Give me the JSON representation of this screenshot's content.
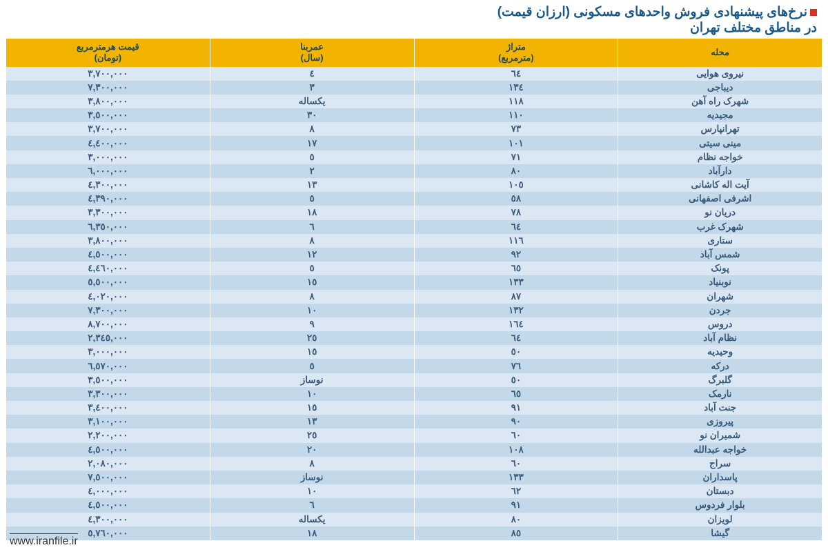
{
  "title": {
    "line1": "نرخ‌های پیشنهادی فروش واحدهای مسکونی (ارزان قیمت)",
    "line2": "در مناطق مختلف تهران"
  },
  "colors": {
    "header_bg": "#f2b400",
    "header_text": "#1a4a6a",
    "title_text": "#1a5a8a",
    "bullet": "#d93025",
    "row_odd": "#dbe8f3",
    "row_even": "#c3d9ea",
    "cell_text": "#3a5a7a"
  },
  "columns": [
    {
      "key": "neighborhood",
      "label_l1": "محله",
      "label_l2": ""
    },
    {
      "key": "area",
      "label_l1": "متراژ",
      "label_l2": "(مترمربع)"
    },
    {
      "key": "age",
      "label_l1": "عمربنا",
      "label_l2": "(سال)"
    },
    {
      "key": "price",
      "label_l1": "قیمت هرمترمربع",
      "label_l2": "(تومان)"
    }
  ],
  "rows": [
    {
      "neighborhood": "نیروی هوایی",
      "area": "٦٤",
      "age": "٤",
      "price": "٣,٧٠٠,٠٠٠"
    },
    {
      "neighborhood": "دیباجی",
      "area": "١٣٤",
      "age": "٣",
      "price": "٧,٣٠٠,٠٠٠"
    },
    {
      "neighborhood": "شهرک راه آهن",
      "area": "١١٨",
      "age": "یکساله",
      "price": "٣,٨٠٠,٠٠٠"
    },
    {
      "neighborhood": "مجیدیه",
      "area": "١١٠",
      "age": "٣٠",
      "price": "٣,٥٠٠,٠٠٠"
    },
    {
      "neighborhood": "تهرانپارس",
      "area": "٧٣",
      "age": "٨",
      "price": "٣,٧٠٠,٠٠٠"
    },
    {
      "neighborhood": "مینی سیتی",
      "area": "١٠١",
      "age": "١٧",
      "price": "٤,٤٠٠,٠٠٠"
    },
    {
      "neighborhood": "خواجه نظام",
      "area": "٧١",
      "age": "٥",
      "price": "٣,٠٠٠,٠٠٠"
    },
    {
      "neighborhood": "دارآباد",
      "area": "٨٠",
      "age": "٢",
      "price": "٦,٠٠٠,٠٠٠"
    },
    {
      "neighborhood": "آیت اله کاشانی",
      "area": "١٠٥",
      "age": "١٣",
      "price": "٤,٣٠٠,٠٠٠"
    },
    {
      "neighborhood": "اشرفی اصفهانی",
      "area": "٥٨",
      "age": "٥",
      "price": "٤,٣٩٠,٠٠٠"
    },
    {
      "neighborhood": "دریان نو",
      "area": "٧٨",
      "age": "١٨",
      "price": "٣,٣٠٠,٠٠٠"
    },
    {
      "neighborhood": "شهرک غرب",
      "area": "٦٤",
      "age": "٦",
      "price": "٦,٣٥٠,٠٠٠"
    },
    {
      "neighborhood": "ستاری",
      "area": "١١٦",
      "age": "٨",
      "price": "٣,٨٠٠,٠٠٠"
    },
    {
      "neighborhood": "شمس آباد",
      "area": "٩٢",
      "age": "١٢",
      "price": "٤,٥٠٠,٠٠٠"
    },
    {
      "neighborhood": "پونک",
      "area": "٦٥",
      "age": "٥",
      "price": "٤,٤٦٠,٠٠٠"
    },
    {
      "neighborhood": "نوبنیاد",
      "area": "١٣٣",
      "age": "١٥",
      "price": "٥,٥٠٠,٠٠٠"
    },
    {
      "neighborhood": "شهران",
      "area": "٨٧",
      "age": "٨",
      "price": "٤,٠٢٠,٠٠٠"
    },
    {
      "neighborhood": "جردن",
      "area": "١٣٢",
      "age": "١٠",
      "price": "٧,٣٠٠,٠٠٠"
    },
    {
      "neighborhood": "دروس",
      "area": "١٦٤",
      "age": "٩",
      "price": "٨,٧٠٠,٠٠٠"
    },
    {
      "neighborhood": "نظام آباد",
      "area": "٦٤",
      "age": "٢٥",
      "price": "٢,٣٤٥,٠٠٠"
    },
    {
      "neighborhood": "وحیدیه",
      "area": "٥٠",
      "age": "١٥",
      "price": "٣,٠٠٠,٠٠٠"
    },
    {
      "neighborhood": "درکه",
      "area": "٧٦",
      "age": "٥",
      "price": "٦,٥٧٠,٠٠٠"
    },
    {
      "neighborhood": "گلبرگ",
      "area": "٥٠",
      "age": "نوساز",
      "price": "٣,٥٠٠,٠٠٠"
    },
    {
      "neighborhood": "نارمک",
      "area": "٦٥",
      "age": "١٠",
      "price": "٣,٣٠٠,٠٠٠"
    },
    {
      "neighborhood": "جنت آباد",
      "area": "٩١",
      "age": "١٥",
      "price": "٣,٤٠٠,٠٠٠"
    },
    {
      "neighborhood": "پیروزی",
      "area": "٩٠",
      "age": "١٣",
      "price": "٣,١٠٠,٠٠٠"
    },
    {
      "neighborhood": "شمیران نو",
      "area": "٦٠",
      "age": "٢٥",
      "price": "٢,٢٠٠,٠٠٠"
    },
    {
      "neighborhood": "خواجه عبدالله",
      "area": "١٠٨",
      "age": "٢٠",
      "price": "٤,٥٠٠,٠٠٠"
    },
    {
      "neighborhood": "سراج",
      "area": "٦٠",
      "age": "٨",
      "price": "٢,٠٨٠,٠٠٠"
    },
    {
      "neighborhood": "پاسداران",
      "area": "١٣٣",
      "age": "نوساز",
      "price": "٧,٥٠٠,٠٠٠"
    },
    {
      "neighborhood": "دبستان",
      "area": "٦٢",
      "age": "١٠",
      "price": "٤,٠٠٠,٠٠٠"
    },
    {
      "neighborhood": "بلوار فردوس",
      "area": "٩١",
      "age": "٦",
      "price": "٤,٥٠٠,٠٠٠"
    },
    {
      "neighborhood": "لویزان",
      "area": "٨٠",
      "age": "یکساله",
      "price": "٤,٣٠٠,٠٠٠"
    },
    {
      "neighborhood": "گیشا",
      "area": "٨٥",
      "age": "١٨",
      "price": "٥,٧٦٠,٠٠٠"
    }
  ],
  "footer": "www.iranfile.ir"
}
